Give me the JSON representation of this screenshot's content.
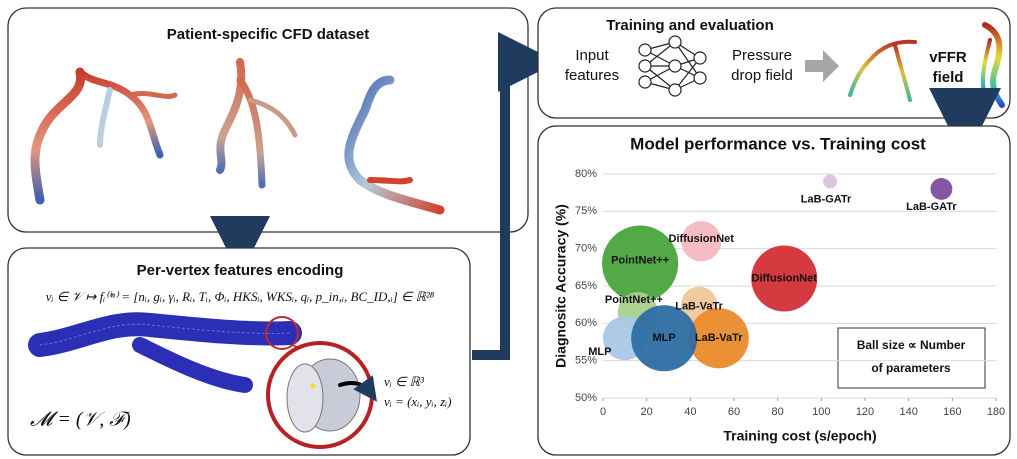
{
  "dataset_panel": {
    "title": "Patient-specific CFD dataset"
  },
  "encoding_panel": {
    "title": "Per-vertex features encoding",
    "feature_map": "vᵢ ∈ 𝒱 ↦ fᵢ⁽ⁱⁿ⁾ = [nᵢ, gᵢ, γᵢ, Rᵢ, Tᵢ, Φᵢ, HKSᵢ, WKSᵢ, qᵢ, p_in,ᵢ, BC_ID,ᵢ] ∈ ℝ²⁸",
    "mesh_label": "𝓜 = (𝒱, ℱ)",
    "vertex_space": "vᵢ ∈ ℝ³",
    "vertex_coords": "vᵢ = (xᵢ, yᵢ, zᵢ)"
  },
  "training_panel": {
    "title": "Training and evaluation",
    "input": [
      "Input",
      "features"
    ],
    "output": [
      "Pressure",
      "drop field"
    ],
    "result": [
      "vFFR",
      "field"
    ]
  },
  "chart_data": {
    "type": "bubble",
    "title": "Model performance vs. Training cost",
    "x_label": "Training cost (s/epoch)",
    "y_label": "Diagnositc Accuracy (%)",
    "size_note": [
      "Ball size ∝ Number",
      "of parameters"
    ],
    "points": [
      {
        "label": "LaB-GATr",
        "x": 104,
        "y": 79,
        "size": 4.5,
        "color": "#d9c3df"
      },
      {
        "label": "LaB-GATr",
        "x": 155,
        "y": 78,
        "size": 11,
        "color": "#7e4e9e"
      },
      {
        "label": "DiffusionNet",
        "x": 45,
        "y": 71,
        "size": 37,
        "color": "#f4b8c0"
      },
      {
        "label": "DiffusionNet",
        "x": 83,
        "y": 66,
        "size": 100,
        "color": "#d22f36"
      },
      {
        "label": "PointNet++",
        "x": 17,
        "y": 68,
        "size": 133,
        "color": "#4aa33e"
      },
      {
        "label": "PointNet++",
        "x": 16,
        "y": 61.5,
        "size": 37,
        "color": "#a8d08d"
      },
      {
        "label": "LaB-VaTr",
        "x": 44,
        "y": 62.5,
        "size": 30,
        "color": "#f1c79a"
      },
      {
        "label": "LaB-VaTr",
        "x": 53,
        "y": 58,
        "size": 83,
        "color": "#e98a2b"
      },
      {
        "label": "MLP",
        "x": 10,
        "y": 58,
        "size": 44,
        "color": "#a9c8e8"
      },
      {
        "label": "MLP",
        "x": 28,
        "y": 58,
        "size": 100,
        "color": "#2d6da3"
      }
    ],
    "xlim": [
      0,
      180
    ],
    "xticks": [
      0,
      20,
      40,
      60,
      80,
      100,
      120,
      140,
      160,
      180
    ],
    "ylim": [
      50,
      80
    ],
    "yticks": [
      {
        "value": 50,
        "label": "50%"
      },
      {
        "value": 55,
        "label": "55%"
      },
      {
        "value": 60,
        "label": "60%"
      },
      {
        "value": 65,
        "label": "65%"
      },
      {
        "value": 70,
        "label": "70%"
      },
      {
        "value": 75,
        "label": "75%"
      },
      {
        "value": 80,
        "label": "80%"
      }
    ],
    "grid": true
  }
}
